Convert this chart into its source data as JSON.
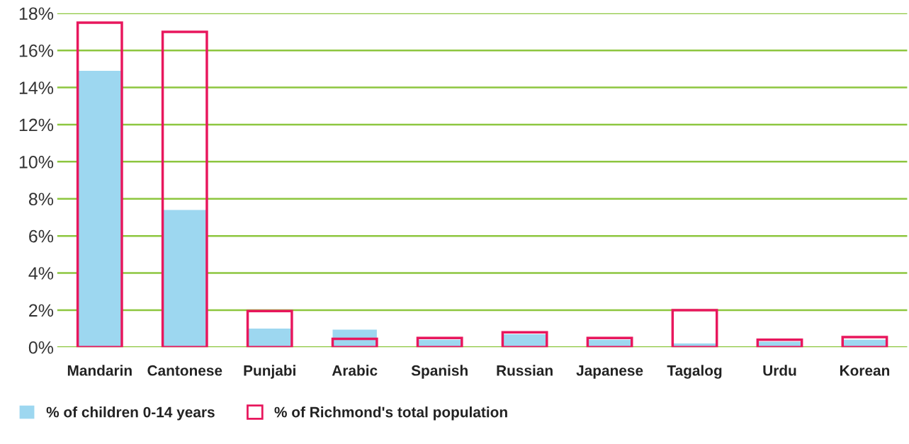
{
  "chart_data": {
    "type": "bar",
    "categories": [
      "Mandarin",
      "Cantonese",
      "Punjabi",
      "Arabic",
      "Spanish",
      "Russian",
      "Japanese",
      "Tagalog",
      "Urdu",
      "Korean"
    ],
    "series": [
      {
        "name": "% of children 0-14 years",
        "color": "#9dd7f0",
        "values": [
          14.9,
          7.4,
          1.0,
          0.95,
          0.4,
          0.7,
          0.4,
          0.2,
          0.3,
          0.4
        ]
      },
      {
        "name": "% of Richmond's total population",
        "color": "#e8175d",
        "values": [
          17.5,
          17.0,
          1.95,
          0.45,
          0.5,
          0.8,
          0.5,
          2.0,
          0.4,
          0.55
        ]
      }
    ],
    "ylim": [
      0,
      18
    ],
    "yticks": [
      {
        "value": 0,
        "label": "0%"
      },
      {
        "value": 2,
        "label": "2%"
      },
      {
        "value": 4,
        "label": "4%"
      },
      {
        "value": 6,
        "label": "6%"
      },
      {
        "value": 8,
        "label": "8%"
      },
      {
        "value": 10,
        "label": "10%"
      },
      {
        "value": 12,
        "label": "12%"
      },
      {
        "value": 14,
        "label": "14%"
      },
      {
        "value": 16,
        "label": "16%"
      },
      {
        "value": 18,
        "label": "18%"
      }
    ],
    "grid": "y",
    "legend": "bottom left"
  }
}
